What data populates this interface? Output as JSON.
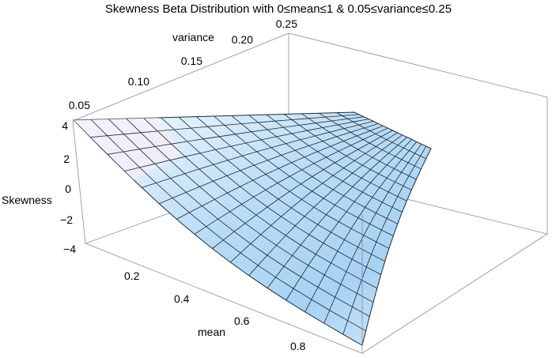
{
  "chart_data": {
    "type": "surface3d",
    "title": "Skewness Beta Distribution with 0≤mean≤1 & 0.05≤variance≤0.25",
    "xlabel": "mean",
    "ylabel": "variance",
    "zlabel": "Skewness",
    "x_ticks": [
      "0.2",
      "0.4",
      "0.6",
      "0.8"
    ],
    "y_ticks": [
      "0.05",
      "0.10",
      "0.15",
      "0.20",
      "0.25"
    ],
    "z_ticks": [
      "4",
      "2",
      "0",
      "−2",
      "−4"
    ],
    "xlim": [
      0,
      1
    ],
    "ylim": [
      0.05,
      0.25
    ],
    "zlim": [
      -4,
      4
    ],
    "grid": false,
    "mesh": true,
    "surface_colors": [
      "#eaf6ff",
      "#aad4f5",
      "#f4e9f4"
    ]
  }
}
